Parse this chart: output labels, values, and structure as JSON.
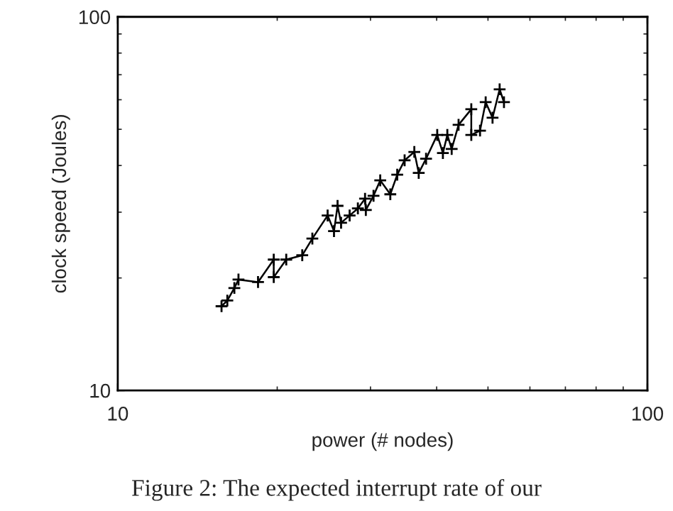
{
  "chart_data": {
    "type": "line",
    "xlabel": "power (# nodes)",
    "ylabel": "clock speed (Joules)",
    "annotations": [
      "Figure 2: The expected interrupt rate of our"
    ],
    "log": "xy",
    "xlim": [
      10,
      100
    ],
    "ylim": [
      10,
      100
    ],
    "xticks": [
      10,
      100
    ],
    "yticks": [
      10,
      100
    ],
    "marker": "cross",
    "line_style": "solid",
    "series": [
      {
        "color": "#000000",
        "x": [
          15.7,
          16.1,
          16.6,
          16.9,
          18.4,
          19.7,
          19.7,
          20.8,
          22.3,
          23.3,
          24.9,
          25.6,
          26.0,
          26.4,
          27.4,
          28.4,
          29.3,
          29.4,
          30.4,
          31.3,
          32.7,
          33.7,
          34.8,
          36.3,
          37.0,
          38.2,
          40.1,
          41.1,
          41.9,
          42.7,
          44.0,
          46.5,
          46.5,
          48.3,
          49.5,
          51.0,
          52.6,
          53.6
        ],
        "values": [
          16.8,
          17.4,
          18.8,
          19.8,
          19.5,
          22.4,
          20.1,
          22.4,
          23.0,
          25.5,
          29.4,
          26.7,
          31.2,
          28.1,
          29.4,
          30.7,
          32.6,
          30.4,
          33.2,
          36.5,
          33.5,
          37.8,
          41.3,
          43.5,
          38.2,
          41.7,
          48.3,
          43.2,
          48.3,
          44.3,
          51.4,
          56.6,
          48.3,
          49.6,
          59.1,
          53.7,
          64.0,
          59.1
        ]
      }
    ]
  }
}
